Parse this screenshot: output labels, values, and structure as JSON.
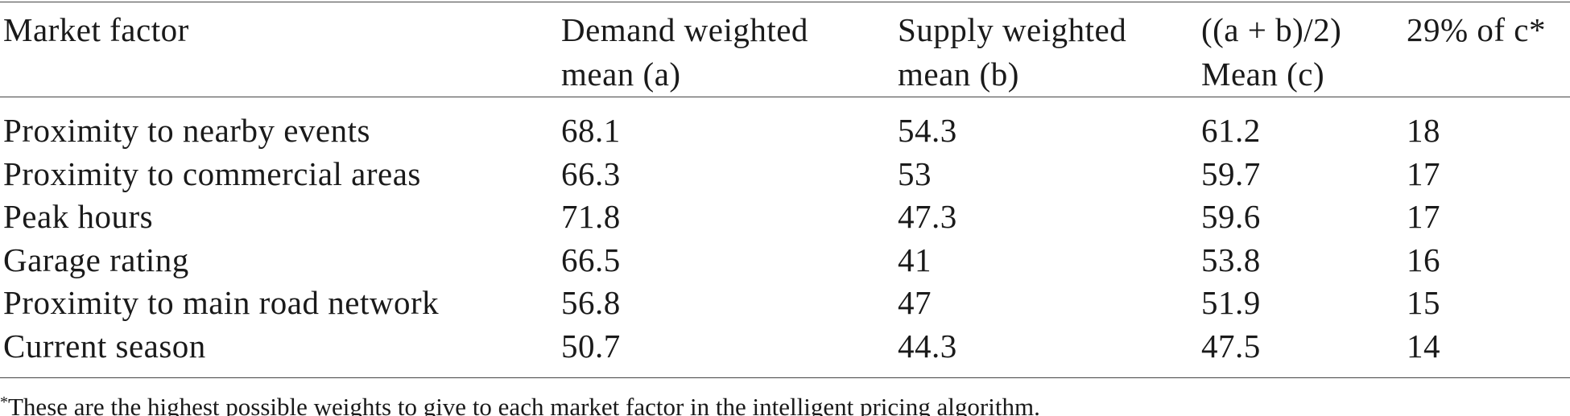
{
  "table": {
    "header": [
      [
        "Market factor"
      ],
      [
        "Demand weighted",
        "mean (a)"
      ],
      [
        "Supply weighted",
        "mean (b)"
      ],
      [
        "((a + b)/2)",
        "Mean (c)"
      ],
      [
        "29% of c*"
      ]
    ],
    "rows": [
      [
        "Proximity to nearby events",
        68.1,
        54.3,
        61.2,
        18
      ],
      [
        "Proximity to commercial areas",
        66.3,
        53,
        59.7,
        17
      ],
      [
        "Peak hours",
        71.8,
        47.3,
        59.6,
        17
      ],
      [
        "Garage rating",
        66.5,
        41,
        53.8,
        16
      ],
      [
        "Proximity to main road network",
        56.8,
        47,
        51.9,
        15
      ],
      [
        "Current season",
        50.7,
        44.3,
        47.5,
        14
      ]
    ]
  },
  "footnote": {
    "marker": "*",
    "text": "These are the highest possible weights to give to each market factor in the intelligent pricing algorithm."
  }
}
